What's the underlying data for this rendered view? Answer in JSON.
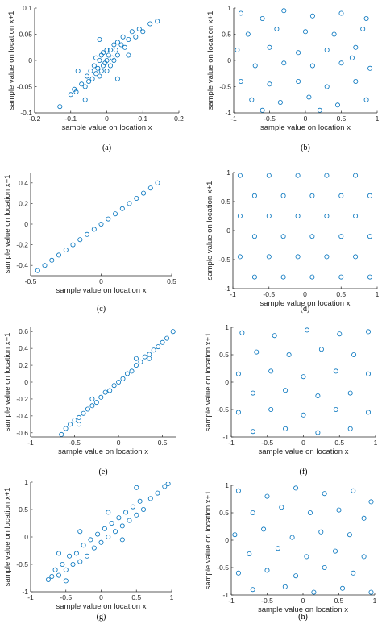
{
  "chart_data": [
    {
      "id": "a",
      "type": "scatter",
      "caption": "(a)",
      "xlabel": "sample value on location x",
      "ylabel": "sample value on location x+1",
      "xlim": [
        -0.2,
        0.2
      ],
      "ylim": [
        -0.1,
        0.1
      ],
      "xticks": [
        -0.2,
        -0.1,
        0,
        0.1,
        0.2
      ],
      "yticks": [
        -0.1,
        -0.05,
        0,
        0.05,
        0.1
      ],
      "xtick_labels": [
        "-0.2",
        "-0.1",
        "0",
        "0.1",
        "0.2"
      ],
      "ytick_labels": [
        "-0.1",
        "-0.05",
        "0",
        "0.05",
        "0.1"
      ],
      "marker": "circle",
      "color": "#0072BD",
      "points": [
        [
          -0.13,
          -0.088
        ],
        [
          -0.1,
          -0.065
        ],
        [
          -0.09,
          -0.055
        ],
        [
          -0.085,
          -0.06
        ],
        [
          -0.07,
          -0.045
        ],
        [
          -0.06,
          -0.05
        ],
        [
          -0.055,
          -0.03
        ],
        [
          -0.05,
          -0.04
        ],
        [
          -0.045,
          -0.02
        ],
        [
          -0.04,
          -0.035
        ],
        [
          -0.035,
          -0.01
        ],
        [
          -0.03,
          -0.025
        ],
        [
          -0.03,
          0.005
        ],
        [
          -0.025,
          -0.015
        ],
        [
          -0.02,
          -0.03
        ],
        [
          -0.02,
          0.0
        ],
        [
          -0.015,
          -0.02
        ],
        [
          -0.015,
          0.01
        ],
        [
          -0.01,
          -0.01
        ],
        [
          -0.01,
          0.015
        ],
        [
          -0.005,
          -0.005
        ],
        [
          0,
          0.0
        ],
        [
          0,
          -0.02
        ],
        [
          0,
          0.02
        ],
        [
          0.005,
          0.01
        ],
        [
          0.01,
          -0.01
        ],
        [
          0.01,
          0.02
        ],
        [
          0.015,
          0.005
        ],
        [
          0.02,
          0.03
        ],
        [
          0.02,
          0.0
        ],
        [
          0.025,
          0.02
        ],
        [
          0.03,
          0.035
        ],
        [
          0.03,
          0.01
        ],
        [
          0.04,
          0.03
        ],
        [
          0.045,
          0.045
        ],
        [
          0.05,
          0.025
        ],
        [
          0.06,
          0.04
        ],
        [
          0.07,
          0.055
        ],
        [
          0.08,
          0.045
        ],
        [
          0.09,
          0.06
        ],
        [
          0.1,
          0.055
        ],
        [
          0.12,
          0.07
        ],
        [
          0.14,
          0.075
        ],
        [
          -0.06,
          -0.075
        ],
        [
          -0.02,
          0.04
        ],
        [
          0.03,
          -0.035
        ],
        [
          0.06,
          0.01
        ],
        [
          -0.08,
          -0.02
        ]
      ]
    },
    {
      "id": "b",
      "type": "scatter",
      "caption": "(b)",
      "xlabel": "sample value on location x",
      "ylabel": "sample value on location x+1",
      "xlim": [
        -1,
        1
      ],
      "ylim": [
        -1,
        1
      ],
      "xticks": [
        -1,
        -0.5,
        0,
        0.5,
        1
      ],
      "yticks": [
        -1,
        -0.5,
        0,
        0.5,
        1
      ],
      "xtick_labels": [
        "-1",
        "-0.5",
        "0",
        "0.5",
        "1"
      ],
      "ytick_labels": [
        "-1",
        "-0.5",
        "0",
        "0.5",
        "1"
      ],
      "marker": "circle",
      "color": "#0072BD",
      "points": [
        [
          -0.9,
          0.9
        ],
        [
          -0.6,
          0.8
        ],
        [
          -0.3,
          0.95
        ],
        [
          0.1,
          0.85
        ],
        [
          0.5,
          0.9
        ],
        [
          0.85,
          0.8
        ],
        [
          -0.8,
          0.5
        ],
        [
          -0.4,
          0.6
        ],
        [
          0,
          0.55
        ],
        [
          0.4,
          0.5
        ],
        [
          0.8,
          0.6
        ],
        [
          -0.95,
          0.2
        ],
        [
          -0.5,
          0.25
        ],
        [
          -0.1,
          0.15
        ],
        [
          0.3,
          0.2
        ],
        [
          0.7,
          0.25
        ],
        [
          -0.7,
          -0.1
        ],
        [
          -0.3,
          -0.05
        ],
        [
          0.1,
          -0.1
        ],
        [
          0.5,
          -0.05
        ],
        [
          0.9,
          -0.15
        ],
        [
          -0.9,
          -0.4
        ],
        [
          -0.5,
          -0.45
        ],
        [
          -0.1,
          -0.4
        ],
        [
          0.3,
          -0.5
        ],
        [
          0.7,
          -0.4
        ],
        [
          -0.75,
          -0.75
        ],
        [
          -0.35,
          -0.8
        ],
        [
          0.05,
          -0.7
        ],
        [
          0.45,
          -0.85
        ],
        [
          0.85,
          -0.75
        ],
        [
          -0.6,
          -0.95
        ],
        [
          0.2,
          -0.95
        ],
        [
          0.65,
          0.05
        ]
      ]
    },
    {
      "id": "c",
      "type": "scatter",
      "caption": "(c)",
      "xlabel": "sample value on location x",
      "ylabel": "sample value on location x+1",
      "xlim": [
        -0.5,
        0.5
      ],
      "ylim": [
        -0.5,
        0.5
      ],
      "xticks": [
        -0.5,
        0,
        0.5
      ],
      "yticks": [
        -0.4,
        -0.2,
        0,
        0.2,
        0.4
      ],
      "xtick_labels": [
        "-0.5",
        "0",
        "0.5"
      ],
      "ytick_labels": [
        "-0.4",
        "-0.2",
        "0",
        "0.2",
        "0.4"
      ],
      "marker": "circle",
      "color": "#0072BD",
      "points": [
        [
          -0.45,
          -0.45
        ],
        [
          -0.4,
          -0.4
        ],
        [
          -0.35,
          -0.35
        ],
        [
          -0.3,
          -0.3
        ],
        [
          -0.25,
          -0.25
        ],
        [
          -0.2,
          -0.2
        ],
        [
          -0.15,
          -0.15
        ],
        [
          -0.1,
          -0.1
        ],
        [
          -0.05,
          -0.05
        ],
        [
          0,
          0
        ],
        [
          0.05,
          0.05
        ],
        [
          0.1,
          0.1
        ],
        [
          0.15,
          0.15
        ],
        [
          0.2,
          0.2
        ],
        [
          0.25,
          0.25
        ],
        [
          0.3,
          0.3
        ],
        [
          0.35,
          0.35
        ],
        [
          0.4,
          0.4
        ]
      ]
    },
    {
      "id": "d",
      "type": "scatter",
      "caption": "(d)",
      "xlabel": "sample value on location x",
      "ylabel": "sample value on location x+1",
      "xlim": [
        -1,
        1
      ],
      "ylim": [
        -1,
        1
      ],
      "xticks": [
        -1,
        -0.5,
        0,
        0.5,
        1
      ],
      "yticks": [
        -1,
        -0.5,
        0,
        0.5,
        1
      ],
      "xtick_labels": [
        "-1",
        "-0.5",
        "0",
        "0.5",
        "1"
      ],
      "ytick_labels": [
        "-1",
        "-0.5",
        "0",
        "0.5",
        "1"
      ],
      "marker": "circle",
      "color": "#0072BD",
      "points": [
        [
          -0.9,
          0.95
        ],
        [
          -0.5,
          0.95
        ],
        [
          -0.1,
          0.95
        ],
        [
          0.3,
          0.95
        ],
        [
          0.7,
          0.95
        ],
        [
          -0.7,
          0.6
        ],
        [
          -0.3,
          0.6
        ],
        [
          0.1,
          0.6
        ],
        [
          0.5,
          0.6
        ],
        [
          0.9,
          0.6
        ],
        [
          -0.9,
          0.25
        ],
        [
          -0.5,
          0.25
        ],
        [
          -0.1,
          0.25
        ],
        [
          0.3,
          0.25
        ],
        [
          0.7,
          0.25
        ],
        [
          -0.7,
          -0.1
        ],
        [
          -0.3,
          -0.1
        ],
        [
          0.1,
          -0.1
        ],
        [
          0.5,
          -0.1
        ],
        [
          0.9,
          -0.1
        ],
        [
          -0.9,
          -0.45
        ],
        [
          -0.5,
          -0.45
        ],
        [
          -0.1,
          -0.45
        ],
        [
          0.3,
          -0.45
        ],
        [
          0.7,
          -0.45
        ],
        [
          -0.7,
          -0.8
        ],
        [
          -0.3,
          -0.8
        ],
        [
          0.1,
          -0.8
        ],
        [
          0.5,
          -0.8
        ],
        [
          0.9,
          -0.8
        ]
      ]
    },
    {
      "id": "e",
      "type": "scatter",
      "caption": "(e)",
      "xlabel": "sample value on location x",
      "ylabel": "sample value on location x+1",
      "xlim": [
        -1,
        0.65
      ],
      "ylim": [
        -0.65,
        0.65
      ],
      "xticks": [
        -1,
        -0.5,
        0,
        0.5
      ],
      "yticks": [
        -0.6,
        -0.4,
        -0.2,
        0,
        0.2,
        0.4,
        0.6
      ],
      "xtick_labels": [
        "-1",
        "-0.5",
        "0",
        "0.5"
      ],
      "ytick_labels": [
        "-0.6",
        "-0.4",
        "-0.2",
        "0",
        "0.2",
        "0.4",
        "0.6"
      ],
      "marker": "circle",
      "color": "#0072BD",
      "points": [
        [
          -0.65,
          -0.62
        ],
        [
          -0.6,
          -0.55
        ],
        [
          -0.55,
          -0.5
        ],
        [
          -0.5,
          -0.45
        ],
        [
          -0.45,
          -0.42
        ],
        [
          -0.4,
          -0.37
        ],
        [
          -0.35,
          -0.32
        ],
        [
          -0.3,
          -0.28
        ],
        [
          -0.25,
          -0.24
        ],
        [
          -0.2,
          -0.18
        ],
        [
          -0.15,
          -0.12
        ],
        [
          -0.1,
          -0.1
        ],
        [
          -0.05,
          -0.04
        ],
        [
          0,
          0
        ],
        [
          0.05,
          0.04
        ],
        [
          0.1,
          0.1
        ],
        [
          0.15,
          0.13
        ],
        [
          0.2,
          0.2
        ],
        [
          0.25,
          0.24
        ],
        [
          0.3,
          0.3
        ],
        [
          0.35,
          0.33
        ],
        [
          0.4,
          0.38
        ],
        [
          0.45,
          0.42
        ],
        [
          0.5,
          0.47
        ],
        [
          0.55,
          0.52
        ],
        [
          0.62,
          0.6
        ],
        [
          -0.3,
          -0.2
        ],
        [
          0.2,
          0.28
        ],
        [
          0.35,
          0.28
        ],
        [
          -0.45,
          -0.5
        ]
      ]
    },
    {
      "id": "f",
      "type": "scatter",
      "caption": "(f)",
      "xlabel": "sample value on location x",
      "ylabel": "sample value on location x+1",
      "xlim": [
        -1,
        1
      ],
      "ylim": [
        -1,
        1
      ],
      "xticks": [
        -1,
        -0.5,
        0,
        0.5,
        1
      ],
      "yticks": [
        -1,
        -0.5,
        0,
        0.5,
        1
      ],
      "xtick_labels": [
        "-1",
        "-0.5",
        "0",
        "0.5",
        "1"
      ],
      "ytick_labels": [
        "-1",
        "-0.5",
        "0",
        "0.5",
        "1"
      ],
      "marker": "circle",
      "color": "#0072BD",
      "points": [
        [
          -0.85,
          0.9
        ],
        [
          -0.4,
          0.85
        ],
        [
          0.05,
          0.95
        ],
        [
          0.5,
          0.88
        ],
        [
          0.9,
          0.92
        ],
        [
          -0.65,
          0.55
        ],
        [
          -0.2,
          0.5
        ],
        [
          0.25,
          0.6
        ],
        [
          0.7,
          0.5
        ],
        [
          -0.9,
          0.15
        ],
        [
          -0.45,
          0.2
        ],
        [
          0,
          0.1
        ],
        [
          0.45,
          0.2
        ],
        [
          0.9,
          0.15
        ],
        [
          -0.7,
          -0.2
        ],
        [
          -0.25,
          -0.15
        ],
        [
          0.2,
          -0.25
        ],
        [
          0.65,
          -0.2
        ],
        [
          -0.9,
          -0.55
        ],
        [
          -0.45,
          -0.5
        ],
        [
          0,
          -0.6
        ],
        [
          0.45,
          -0.5
        ],
        [
          0.9,
          -0.55
        ],
        [
          -0.7,
          -0.9
        ],
        [
          -0.25,
          -0.85
        ],
        [
          0.2,
          -0.92
        ],
        [
          0.65,
          -0.85
        ]
      ]
    },
    {
      "id": "g",
      "type": "scatter",
      "caption": "(g)",
      "xlabel": "sample value on location x",
      "ylabel": "sample value on location x+1",
      "xlim": [
        -1,
        1
      ],
      "ylim": [
        -1,
        1
      ],
      "xticks": [
        -1,
        -0.5,
        0,
        0.5,
        1
      ],
      "yticks": [
        -1,
        -0.5,
        0,
        0.5,
        1
      ],
      "xtick_labels": [
        "-1",
        "-0.5",
        "0",
        "0.5",
        "1"
      ],
      "ytick_labels": [
        "-1",
        "-0.5",
        "0",
        "0.5",
        "1"
      ],
      "marker": "circle",
      "color": "#0072BD",
      "points": [
        [
          -0.75,
          -0.78
        ],
        [
          -0.7,
          -0.72
        ],
        [
          -0.65,
          -0.6
        ],
        [
          -0.6,
          -0.7
        ],
        [
          -0.55,
          -0.5
        ],
        [
          -0.5,
          -0.6
        ],
        [
          -0.45,
          -0.35
        ],
        [
          -0.4,
          -0.5
        ],
        [
          -0.35,
          -0.3
        ],
        [
          -0.3,
          -0.45
        ],
        [
          -0.25,
          -0.15
        ],
        [
          -0.2,
          -0.35
        ],
        [
          -0.15,
          -0.05
        ],
        [
          -0.1,
          -0.2
        ],
        [
          -0.05,
          0.05
        ],
        [
          0,
          -0.1
        ],
        [
          0.05,
          0.15
        ],
        [
          0.1,
          0
        ],
        [
          0.15,
          0.25
        ],
        [
          0.2,
          0.1
        ],
        [
          0.25,
          0.35
        ],
        [
          0.3,
          0.2
        ],
        [
          0.35,
          0.45
        ],
        [
          0.4,
          0.3
        ],
        [
          0.45,
          0.55
        ],
        [
          0.5,
          0.4
        ],
        [
          0.55,
          0.65
        ],
        [
          0.6,
          0.5
        ],
        [
          0.7,
          0.7
        ],
        [
          0.8,
          0.8
        ],
        [
          0.9,
          0.92
        ],
        [
          0.95,
          0.97
        ],
        [
          -0.6,
          -0.3
        ],
        [
          -0.3,
          0.1
        ],
        [
          0.1,
          0.45
        ],
        [
          0.3,
          -0.05
        ],
        [
          0.5,
          0.9
        ],
        [
          -0.5,
          -0.8
        ]
      ]
    },
    {
      "id": "h",
      "type": "scatter",
      "caption": "(h)",
      "xlabel": "sample value on location x",
      "ylabel": "sample value on location x+1",
      "xlim": [
        -1,
        1
      ],
      "ylim": [
        -1,
        1
      ],
      "xticks": [
        -1,
        -0.5,
        0,
        0.5,
        1
      ],
      "yticks": [
        -1,
        -0.5,
        0,
        0.5,
        1
      ],
      "xtick_labels": [
        "-1",
        "-0.5",
        "0",
        "0.5",
        "1"
      ],
      "ytick_labels": [
        "-1",
        "-0.5",
        "0",
        "0.5",
        "1"
      ],
      "marker": "circle",
      "color": "#0072BD",
      "points": [
        [
          -0.9,
          0.9
        ],
        [
          -0.5,
          0.8
        ],
        [
          -0.1,
          0.95
        ],
        [
          0.3,
          0.85
        ],
        [
          0.7,
          0.9
        ],
        [
          0.95,
          0.7
        ],
        [
          -0.7,
          0.5
        ],
        [
          -0.3,
          0.6
        ],
        [
          0.1,
          0.5
        ],
        [
          0.5,
          0.55
        ],
        [
          0.85,
          0.4
        ],
        [
          -0.95,
          0.1
        ],
        [
          -0.55,
          0.2
        ],
        [
          -0.15,
          0.05
        ],
        [
          0.25,
          0.15
        ],
        [
          0.65,
          0.1
        ],
        [
          -0.75,
          -0.25
        ],
        [
          -0.35,
          -0.15
        ],
        [
          0.05,
          -0.3
        ],
        [
          0.45,
          -0.2
        ],
        [
          0.85,
          -0.3
        ],
        [
          -0.9,
          -0.6
        ],
        [
          -0.5,
          -0.55
        ],
        [
          -0.1,
          -0.65
        ],
        [
          0.3,
          -0.5
        ],
        [
          0.7,
          -0.6
        ],
        [
          -0.7,
          -0.9
        ],
        [
          -0.25,
          -0.85
        ],
        [
          0.15,
          -0.95
        ],
        [
          0.55,
          -0.88
        ],
        [
          0.95,
          -0.95
        ]
      ]
    }
  ]
}
